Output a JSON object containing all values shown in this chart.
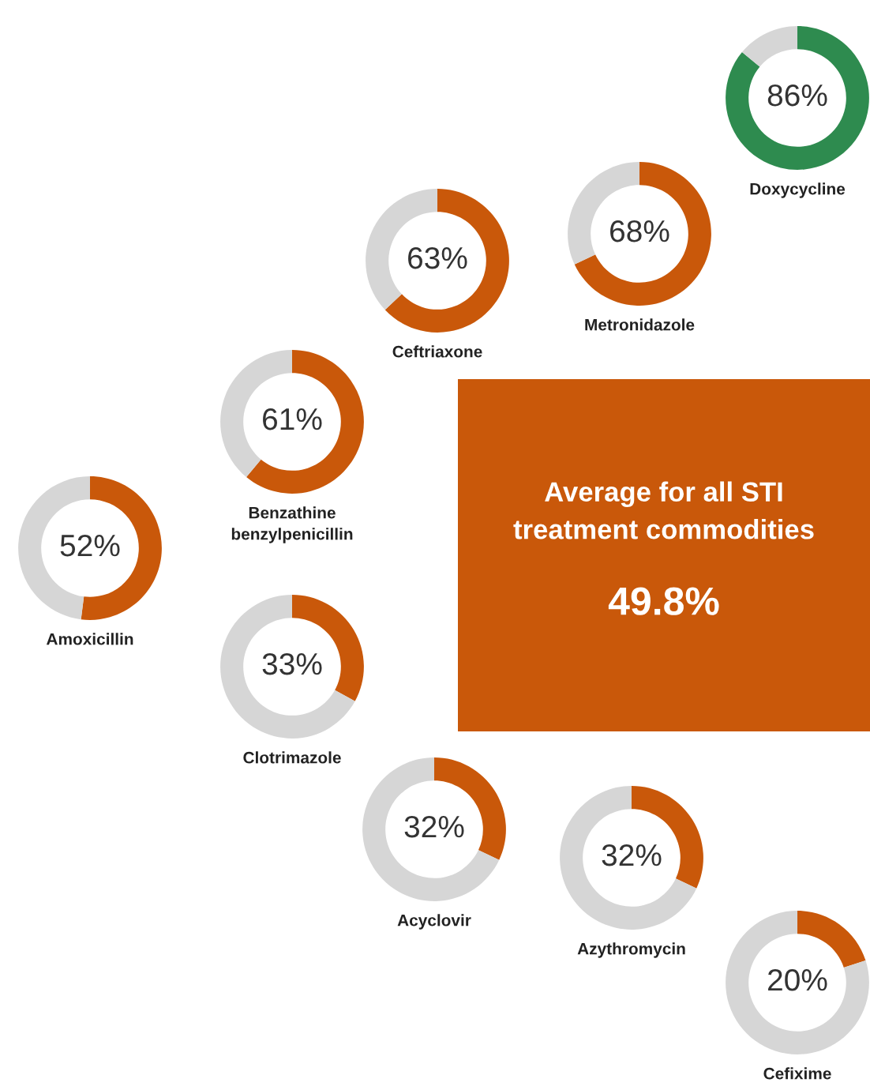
{
  "chart_data": [
    {
      "type": "donut",
      "title": "Doxycycline",
      "categories": [
        null,
        null
      ],
      "values": [
        86,
        14
      ],
      "colors": [
        "#2e8b4f",
        "#d6d6d6"
      ],
      "annotations": [
        "86%"
      ]
    },
    {
      "type": "donut",
      "title": "Metronidazole",
      "categories": [
        null,
        null
      ],
      "values": [
        68,
        32
      ],
      "colors": [
        "#c9580a",
        "#d6d6d6"
      ],
      "annotations": [
        "68%"
      ]
    },
    {
      "type": "donut",
      "title": "Ceftriaxone",
      "categories": [
        null,
        null
      ],
      "values": [
        63,
        37
      ],
      "colors": [
        "#c9580a",
        "#d6d6d6"
      ],
      "annotations": [
        "63%"
      ]
    },
    {
      "type": "donut",
      "title": "Benzathine\nbenzylpenicillin",
      "categories": [
        null,
        null
      ],
      "values": [
        61,
        39
      ],
      "colors": [
        "#c9580a",
        "#d6d6d6"
      ],
      "annotations": [
        "61%"
      ]
    },
    {
      "type": "other",
      "title": "Average for all STI\ntreatment commodities",
      "annotations": [
        "49.8%"
      ]
    },
    {
      "type": "donut",
      "title": "Amoxicillin",
      "categories": [
        null,
        null
      ],
      "values": [
        52,
        48
      ],
      "colors": [
        "#c9580a",
        "#d6d6d6"
      ],
      "annotations": [
        "52%"
      ]
    },
    {
      "type": "donut",
      "title": "Clotrimazole",
      "categories": [
        null,
        null
      ],
      "values": [
        33,
        67
      ],
      "colors": [
        "#c9580a",
        "#d6d6d6"
      ],
      "annotations": [
        "33%"
      ]
    },
    {
      "type": "donut",
      "title": "Acyclovir",
      "categories": [
        null,
        null
      ],
      "values": [
        32,
        68
      ],
      "colors": [
        "#c9580a",
        "#d6d6d6"
      ],
      "annotations": [
        "32%"
      ]
    },
    {
      "type": "donut",
      "title": "Azythromycin",
      "categories": [
        null,
        null
      ],
      "values": [
        32,
        68
      ],
      "colors": [
        "#c9580a",
        "#d6d6d6"
      ],
      "annotations": [
        "32%"
      ]
    },
    {
      "type": "donut",
      "title": "Cefixime",
      "categories": [
        null,
        null
      ],
      "values": [
        20,
        80
      ],
      "colors": [
        "#c9580a",
        "#d6d6d6"
      ],
      "annotations": [
        "20%"
      ]
    }
  ]
}
